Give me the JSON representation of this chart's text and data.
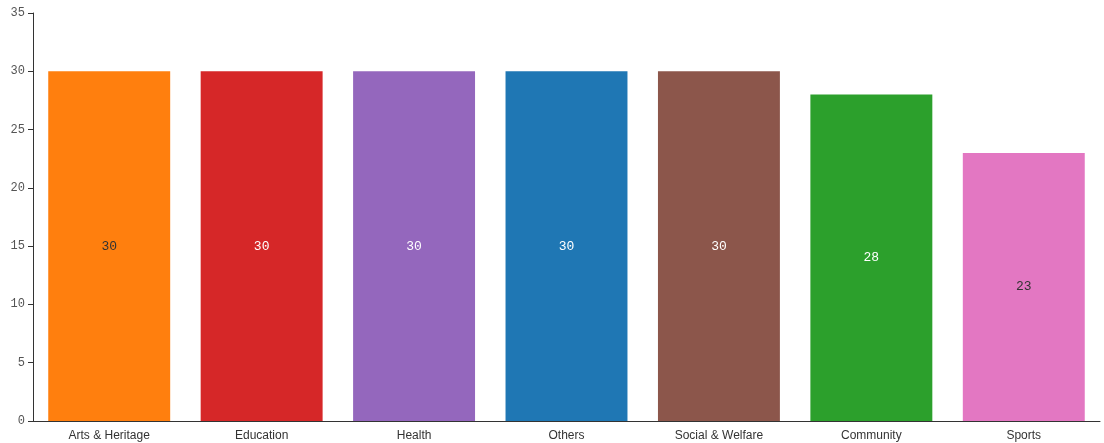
{
  "chart_data": {
    "type": "bar",
    "categories": [
      "Arts & Heritage",
      "Education",
      "Health",
      "Others",
      "Social & Welfare",
      "Community",
      "Sports"
    ],
    "values": [
      30,
      30,
      30,
      30,
      30,
      28,
      23
    ],
    "colors": [
      "#ff7f0e",
      "#d62728",
      "#9467bd",
      "#1f77b4",
      "#8c564b",
      "#2ca02c",
      "#e377c2"
    ],
    "ylim": [
      0,
      35
    ],
    "yticks": [
      0,
      5,
      10,
      15,
      20,
      25,
      30,
      35
    ],
    "grid": false,
    "data_labels": true
  }
}
